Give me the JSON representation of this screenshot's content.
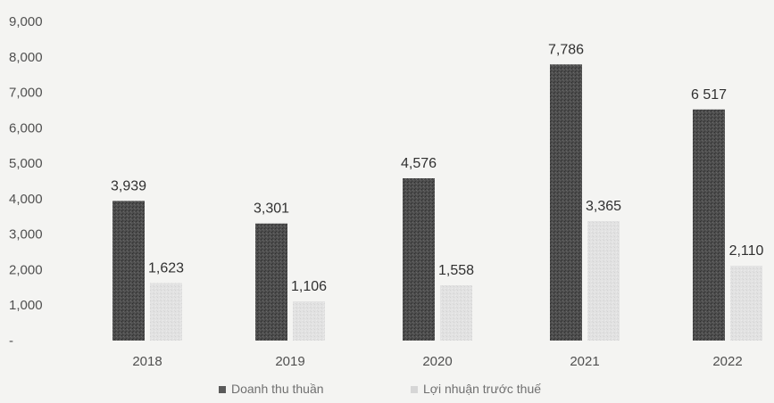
{
  "chart_data": {
    "type": "bar",
    "categories": [
      "2018",
      "2019",
      "2020",
      "2021",
      "2022"
    ],
    "series": [
      {
        "name": "Doanh thu thuần",
        "values": [
          3939,
          3301,
          4576,
          7786,
          6517
        ],
        "color": "#4a4a4a"
      },
      {
        "name": "Lợi nhuận trước thuế",
        "values": [
          1623,
          1106,
          1558,
          3365,
          2110
        ],
        "color": "#e3e3e3"
      }
    ],
    "data_labels": [
      [
        "3,939",
        "3,301",
        "4,576",
        "7,786",
        "6 517"
      ],
      [
        "1,623",
        "1,106",
        "1,558",
        "3,365",
        "2,110"
      ]
    ],
    "y_ticks": [
      0,
      1000,
      2000,
      3000,
      4000,
      5000,
      6000,
      7000,
      8000,
      9000
    ],
    "y_tick_labels": [
      "-",
      "1,000",
      "2,000",
      "3,000",
      "4,000",
      "5,000",
      "6,000",
      "7,000",
      "8,000",
      "9,000"
    ],
    "ylim": [
      0,
      9000
    ],
    "grid": false,
    "legend_position": "bottom-center"
  }
}
